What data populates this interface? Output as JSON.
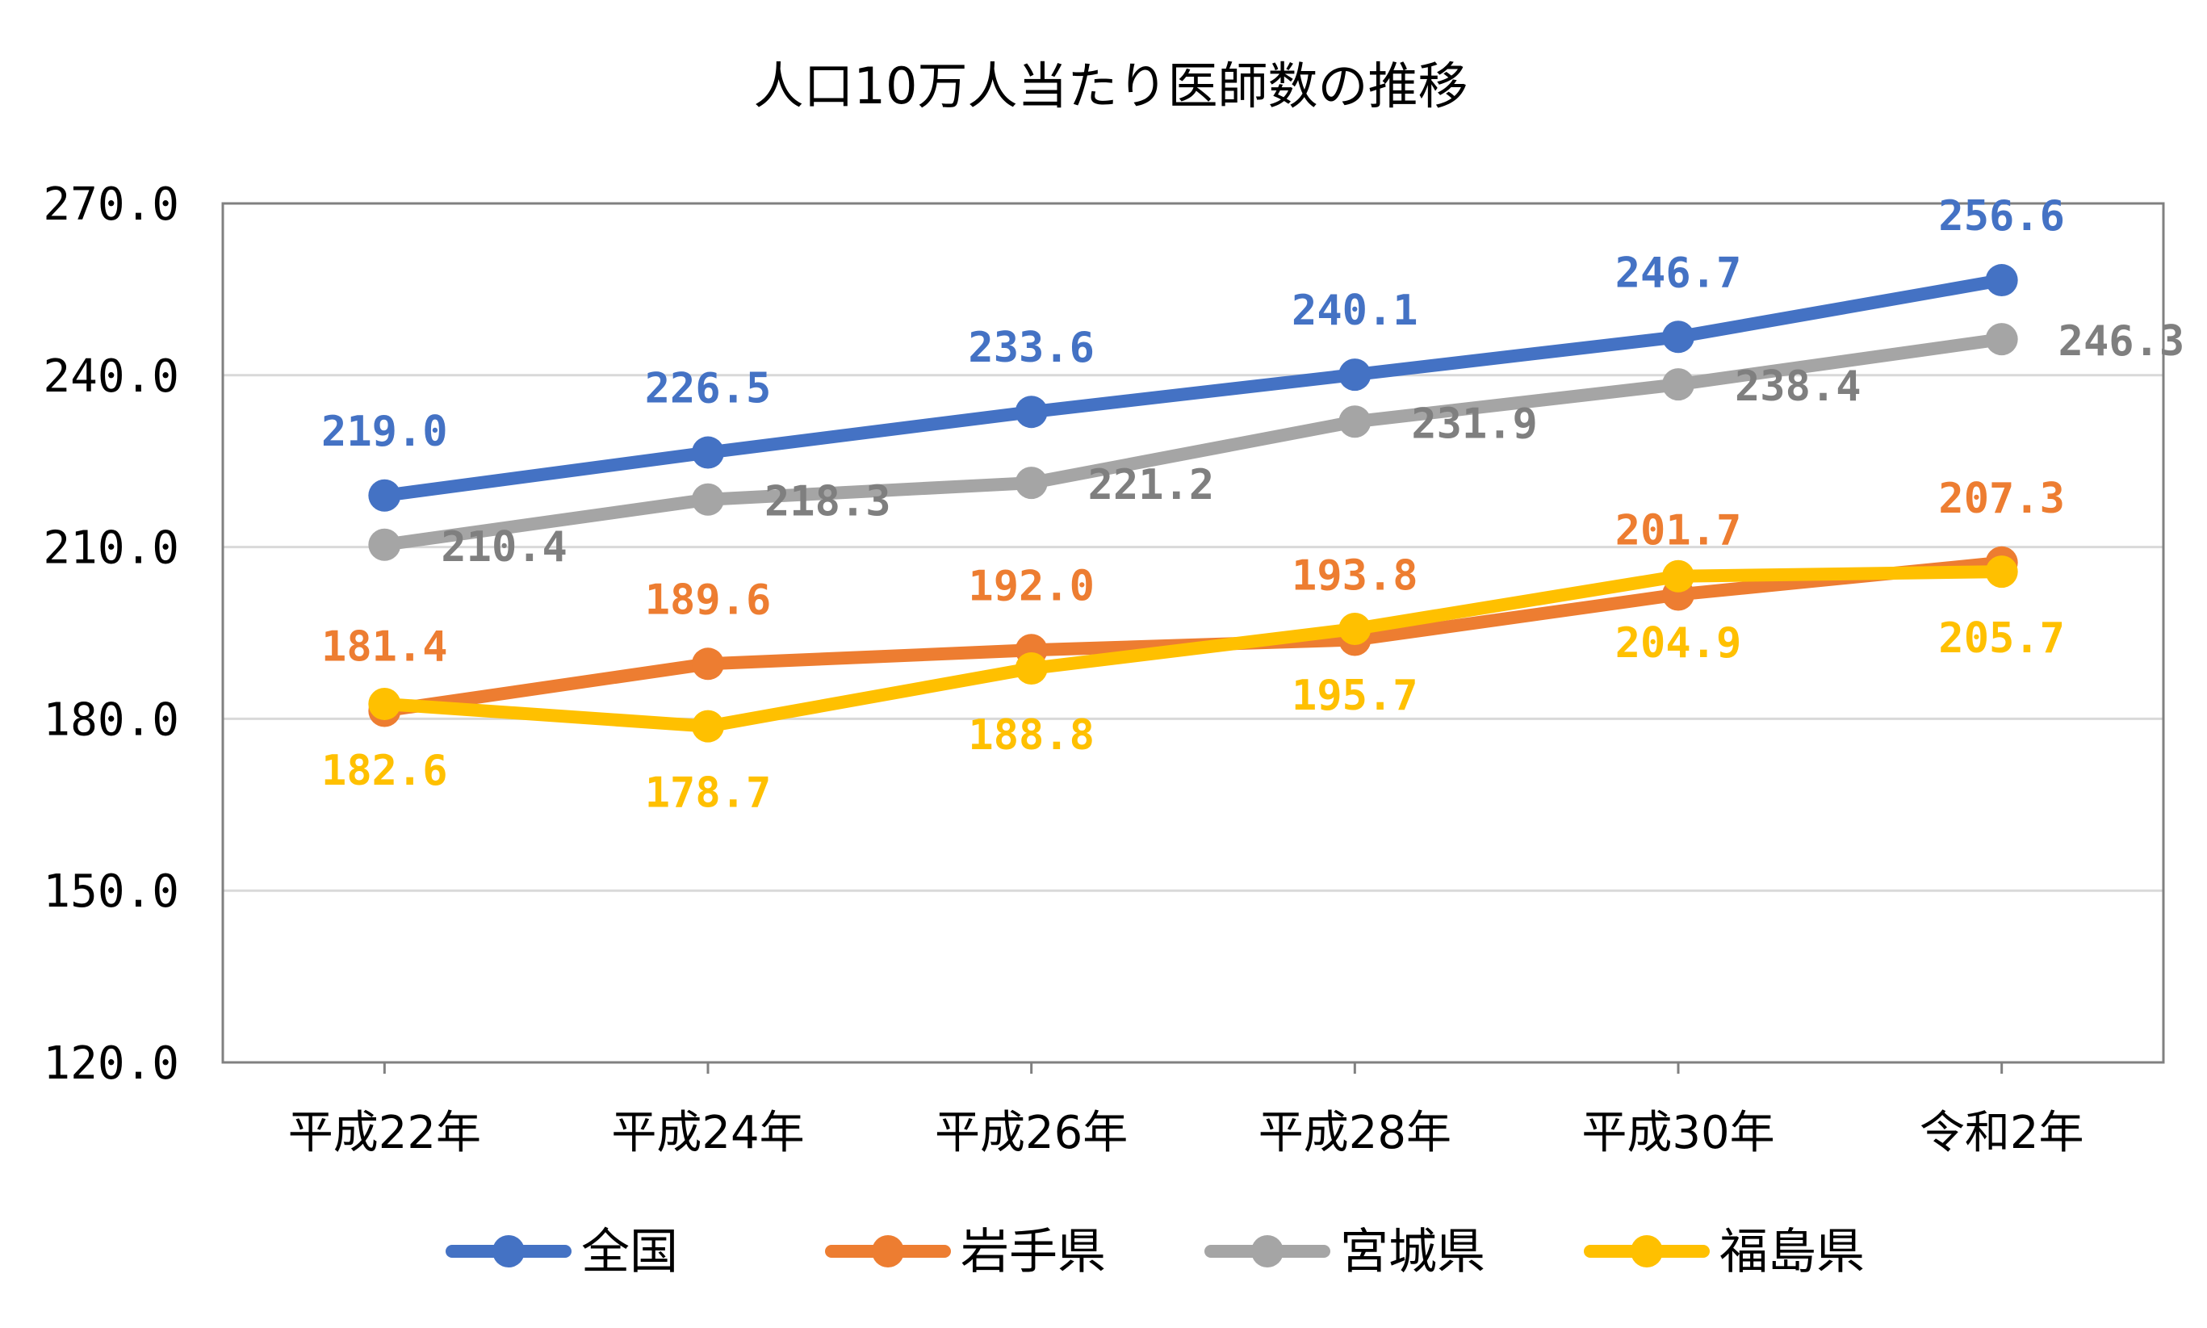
{
  "chart_data": {
    "type": "line",
    "title": "人口10万人当たり医師数の推移",
    "xlabel": "",
    "ylabel": "",
    "ylim": [
      120,
      270
    ],
    "yticks": [
      "120.0",
      "150.0",
      "180.0",
      "210.0",
      "240.0",
      "270.0"
    ],
    "grid": true,
    "legend_position": "bottom",
    "categories": [
      "平成22年",
      "平成24年",
      "平成26年",
      "平成28年",
      "平成30年",
      "令和2年"
    ],
    "series": [
      {
        "name": "全国",
        "color": "#4472C4",
        "values": [
          219.0,
          226.5,
          233.6,
          240.1,
          246.7,
          256.6
        ],
        "labels": [
          "219.0",
          "226.5",
          "233.6",
          "240.1",
          "246.7",
          "256.6"
        ]
      },
      {
        "name": "岩手県",
        "color": "#ED7D31",
        "values": [
          181.4,
          189.6,
          192.0,
          193.8,
          201.7,
          207.3
        ],
        "labels": [
          "181.4",
          "189.6",
          "192.0",
          "193.8",
          "201.7",
          "207.3"
        ]
      },
      {
        "name": "宮城県",
        "color": "#A5A5A5",
        "values": [
          210.4,
          218.3,
          221.2,
          231.9,
          238.4,
          246.3
        ],
        "labels": [
          "210.4",
          "218.3",
          "221.2",
          "231.9",
          "238.4",
          "246.3"
        ]
      },
      {
        "name": "福島県",
        "color": "#FFC000",
        "values": [
          182.6,
          178.7,
          188.8,
          195.7,
          204.9,
          205.7
        ],
        "labels": [
          "182.6",
          "178.7",
          "188.8",
          "195.7",
          "204.9",
          "205.7"
        ]
      }
    ]
  }
}
